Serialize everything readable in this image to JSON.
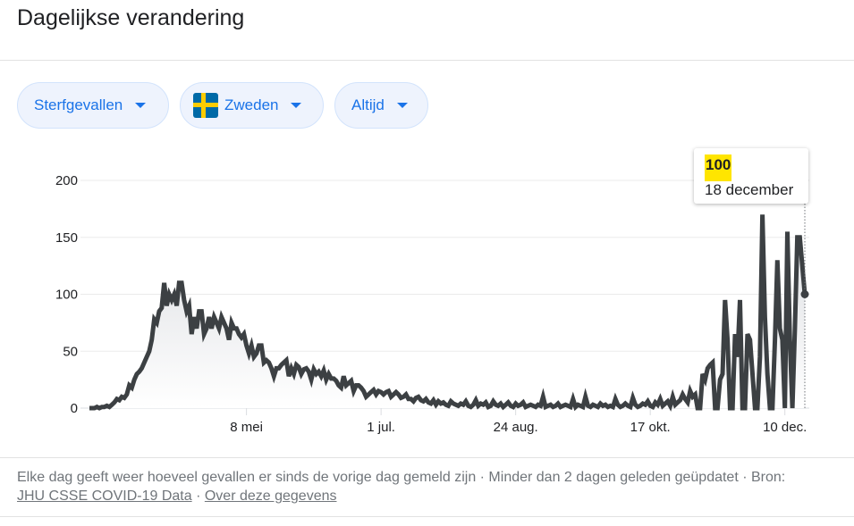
{
  "header": {
    "title": "Dagelijkse verandering"
  },
  "filters": {
    "metric": "Sterfgevallen",
    "country": "Zweden",
    "period": "Altijd"
  },
  "tooltip": {
    "value": "100",
    "date": "18 december"
  },
  "footer": {
    "text": "Elke dag geeft weer hoeveel gevallen er sinds de vorige dag gemeld zijn · Minder dan 2 dagen geleden geüpdatet · Bron:",
    "source_link": "JHU CSSE COVID-19 Data",
    "separator": "·",
    "about_link": "Over deze gegevens"
  },
  "colors": {
    "line": "#3c4043",
    "accent": "#1a73e8",
    "highlight": "#ffe500"
  },
  "chart_data": {
    "type": "area",
    "title": "Dagelijkse verandering",
    "series_name": "Sterfgevallen",
    "start_date": "2020-03-06",
    "end_date": "2020-12-18",
    "ylim": [
      0,
      200
    ],
    "yticks": [
      "0",
      "50",
      "100",
      "150",
      "200"
    ],
    "ytick_values": [
      0,
      50,
      100,
      150,
      200
    ],
    "xticks": [
      {
        "label": "8 mei",
        "day_index": 63
      },
      {
        "label": "1 jul.",
        "day_index": 117
      },
      {
        "label": "24 aug.",
        "day_index": 171
      },
      {
        "label": "17 okt.",
        "day_index": 225
      },
      {
        "label": "10 dec.",
        "day_index": 279
      }
    ],
    "grid": true,
    "values": [
      0,
      0,
      0,
      1,
      0,
      1,
      1,
      2,
      1,
      3,
      5,
      8,
      7,
      10,
      9,
      12,
      20,
      18,
      25,
      30,
      32,
      35,
      40,
      45,
      50,
      60,
      78,
      75,
      85,
      88,
      110,
      90,
      100,
      95,
      100,
      90,
      110,
      110,
      95,
      85,
      90,
      65,
      80,
      70,
      85,
      85,
      65,
      70,
      80,
      70,
      80,
      75,
      70,
      80,
      75,
      70,
      60,
      75,
      70,
      70,
      65,
      62,
      65,
      55,
      48,
      55,
      45,
      48,
      55,
      55,
      40,
      42,
      40,
      35,
      28,
      35,
      35,
      38,
      40,
      42,
      28,
      35,
      30,
      38,
      36,
      30,
      34,
      35,
      32,
      25,
      34,
      30,
      32,
      28,
      33,
      25,
      30,
      26,
      26,
      24,
      20,
      18,
      28,
      20,
      22,
      24,
      15,
      20,
      20,
      18,
      15,
      10,
      12,
      14,
      16,
      12,
      15,
      14,
      12,
      14,
      15,
      10,
      12,
      14,
      12,
      9,
      10,
      12,
      8,
      8,
      6,
      9,
      10,
      7,
      6,
      8,
      5,
      4,
      7,
      3,
      6,
      4,
      5,
      3,
      2,
      6,
      4,
      3,
      2,
      4,
      3,
      6,
      2,
      1,
      3,
      7,
      2,
      4,
      3,
      5,
      1,
      2,
      6,
      3,
      2,
      4,
      1,
      3,
      5,
      2,
      1,
      4,
      2,
      3,
      5,
      1,
      2,
      3,
      2,
      1,
      3,
      2,
      10,
      1,
      2,
      3,
      1,
      2,
      4,
      1,
      2,
      3,
      2,
      1,
      8,
      1,
      3,
      2,
      1,
      10,
      2,
      1,
      3,
      2,
      1,
      4,
      2,
      3,
      1,
      2,
      1,
      8,
      3,
      1,
      2,
      4,
      2,
      1,
      9,
      3,
      1,
      2,
      4,
      3,
      6,
      2,
      1,
      5,
      3,
      8,
      2,
      4,
      6,
      2,
      10,
      3,
      5,
      7,
      12,
      8,
      5,
      15,
      10,
      12,
      0,
      0,
      30,
      25,
      35,
      38,
      40,
      0,
      0,
      25,
      30,
      95,
      60,
      0,
      0,
      65,
      45,
      95,
      0,
      0,
      65,
      60,
      30,
      0,
      0,
      45,
      170,
      80,
      30,
      0,
      0,
      60,
      130,
      70,
      60,
      0,
      155,
      60,
      0,
      70,
      150,
      150,
      125,
      100
    ],
    "highlighted_point": {
      "date": "18 december",
      "value": 100
    }
  }
}
